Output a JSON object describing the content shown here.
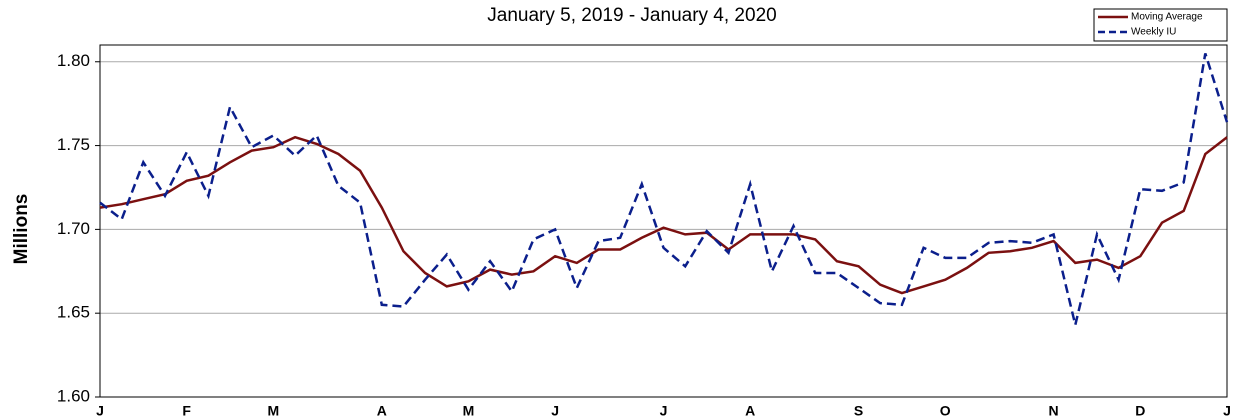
{
  "chart_data": {
    "type": "line",
    "title": "January 5, 2019 - January 4, 2020",
    "y_label": "Millions",
    "categories": [
      "J",
      null,
      null,
      null,
      "F",
      null,
      null,
      null,
      "M",
      null,
      null,
      null,
      null,
      "A",
      null,
      null,
      null,
      "M",
      null,
      null,
      null,
      "J",
      null,
      null,
      null,
      null,
      "J",
      null,
      null,
      null,
      "A",
      null,
      null,
      null,
      null,
      "S",
      null,
      null,
      null,
      "O",
      null,
      null,
      null,
      null,
      "N",
      null,
      null,
      null,
      "D",
      null,
      null,
      null,
      "J"
    ],
    "series": [
      {
        "name": "Moving Average",
        "color": "#7b1010",
        "dash": false,
        "values": [
          1.713,
          1.715,
          1.718,
          1.721,
          1.729,
          1.732,
          1.74,
          1.747,
          1.749,
          1.755,
          1.751,
          1.745,
          1.735,
          1.713,
          1.687,
          1.674,
          1.666,
          1.669,
          1.676,
          1.673,
          1.675,
          1.684,
          1.68,
          1.688,
          1.688,
          1.695,
          1.701,
          1.697,
          1.698,
          1.688,
          1.697,
          1.697,
          1.697,
          1.694,
          1.681,
          1.678,
          1.667,
          1.662,
          1.666,
          1.67,
          1.677,
          1.686,
          1.687,
          1.689,
          1.693,
          1.68,
          1.682,
          1.677,
          1.684,
          1.704,
          1.711,
          1.745,
          1.755
        ]
      },
      {
        "name": "Weekly IU",
        "color": "#0b1f8c",
        "dash": true,
        "values": [
          1.716,
          1.706,
          1.74,
          1.72,
          1.746,
          1.72,
          1.773,
          1.749,
          1.756,
          1.744,
          1.756,
          1.726,
          1.716,
          1.655,
          1.654,
          1.67,
          1.685,
          1.664,
          1.681,
          1.663,
          1.694,
          1.7,
          1.665,
          1.693,
          1.695,
          1.727,
          1.689,
          1.678,
          1.699,
          1.686,
          1.727,
          1.675,
          1.702,
          1.674,
          1.674,
          1.665,
          1.656,
          1.655,
          1.689,
          1.683,
          1.683,
          1.692,
          1.693,
          1.692,
          1.697,
          1.643,
          1.697,
          1.67,
          1.724,
          1.723,
          1.728,
          1.805,
          1.764
        ]
      }
    ],
    "ylim": [
      1.6,
      1.81
    ],
    "yticks": [
      {
        "value": 1.6,
        "label": "1.60"
      },
      1.65,
      {
        "value": 1.7,
        "label": "1.70"
      },
      1.75,
      {
        "value": 1.8,
        "label": "1.80"
      }
    ],
    "grid": true,
    "legend": "top-right"
  }
}
